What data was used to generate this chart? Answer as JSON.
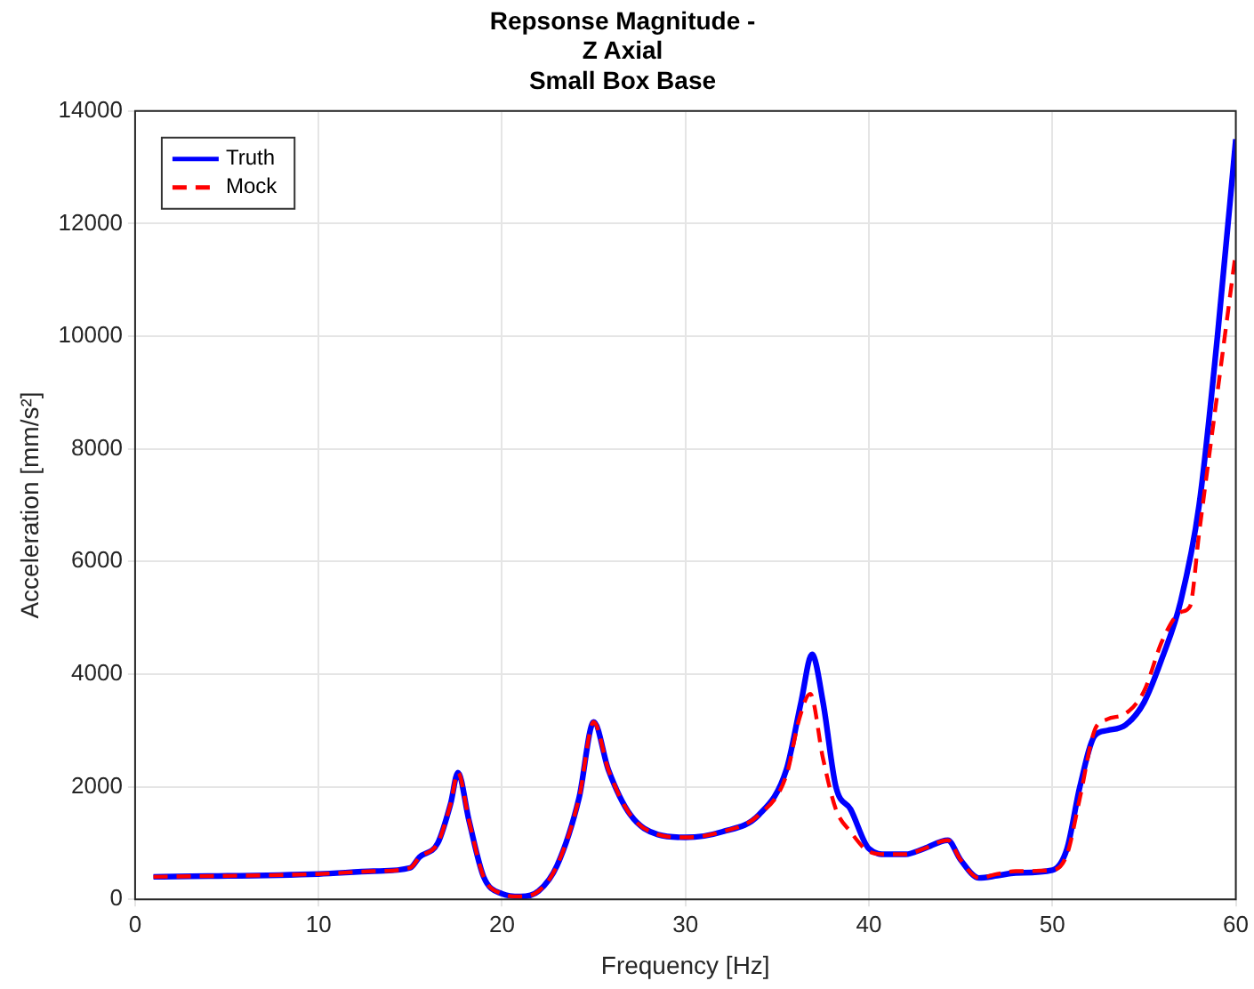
{
  "chart_data": {
    "type": "line",
    "title": [
      "Repsonse Magnitude -",
      "Z Axial",
      "Small Box Base"
    ],
    "xlabel": "Frequency [Hz]",
    "ylabel": "Acceleration [mm/s²]",
    "xlim": [
      0,
      60
    ],
    "xticks": [
      0,
      10,
      20,
      30,
      40,
      50,
      60
    ],
    "ylim": [
      0,
      14000
    ],
    "yticks": [
      0,
      2000,
      4000,
      6000,
      8000,
      10000,
      12000,
      14000
    ],
    "grid": true,
    "legend": "top left",
    "marker": "none",
    "series": [
      {
        "name": "Truth",
        "color": "#0000ff",
        "line_style": "solid",
        "x": [
          1,
          10,
          13,
          15,
          15.5,
          16.5,
          17.2,
          17.6,
          18.2,
          19,
          20,
          21,
          22,
          23,
          24.2,
          25,
          25.8,
          27,
          28.5,
          30,
          32,
          34,
          35.5,
          36.3,
          36.9,
          37.5,
          38.2,
          39,
          40,
          41,
          42,
          43,
          44.3,
          45,
          46,
          47,
          48,
          50,
          50.8,
          51.5,
          52.3,
          53,
          54,
          55,
          56,
          57,
          58,
          59,
          60
        ],
        "values": [
          400,
          450,
          500,
          560,
          750,
          1000,
          1700,
          2250,
          1400,
          400,
          100,
          50,
          150,
          600,
          1800,
          3150,
          2300,
          1500,
          1150,
          1100,
          1200,
          1500,
          2300,
          3500,
          4350,
          3500,
          2000,
          1600,
          900,
          800,
          800,
          900,
          1050,
          700,
          380,
          420,
          470,
          520,
          900,
          2000,
          2900,
          3000,
          3100,
          3500,
          4300,
          5300,
          7000,
          10000,
          13500
        ]
      },
      {
        "name": "Mock",
        "color": "#ff0000",
        "line_style": "dashed",
        "x": [
          1,
          10,
          13,
          15,
          15.5,
          16.5,
          17.2,
          17.6,
          18.2,
          19,
          20,
          21,
          22,
          23,
          24.2,
          25,
          25.8,
          27,
          28.5,
          30,
          32,
          34,
          35.5,
          36.2,
          36.8,
          37.5,
          38.2,
          39,
          40,
          41,
          42,
          43,
          44.3,
          45,
          46,
          47,
          48,
          50,
          50.8,
          51.5,
          52.3,
          53,
          54,
          55,
          56,
          57,
          57.5,
          58,
          59,
          60
        ],
        "values": [
          400,
          450,
          500,
          560,
          750,
          1000,
          1700,
          2250,
          1400,
          400,
          100,
          50,
          150,
          600,
          1800,
          3150,
          2300,
          1500,
          1150,
          1100,
          1200,
          1500,
          2200,
          3200,
          3650,
          2500,
          1600,
          1200,
          850,
          800,
          800,
          900,
          1050,
          700,
          380,
          450,
          500,
          520,
          800,
          1800,
          3000,
          3200,
          3300,
          3700,
          4600,
          5100,
          5200,
          6500,
          9000,
          11500
        ]
      }
    ]
  }
}
